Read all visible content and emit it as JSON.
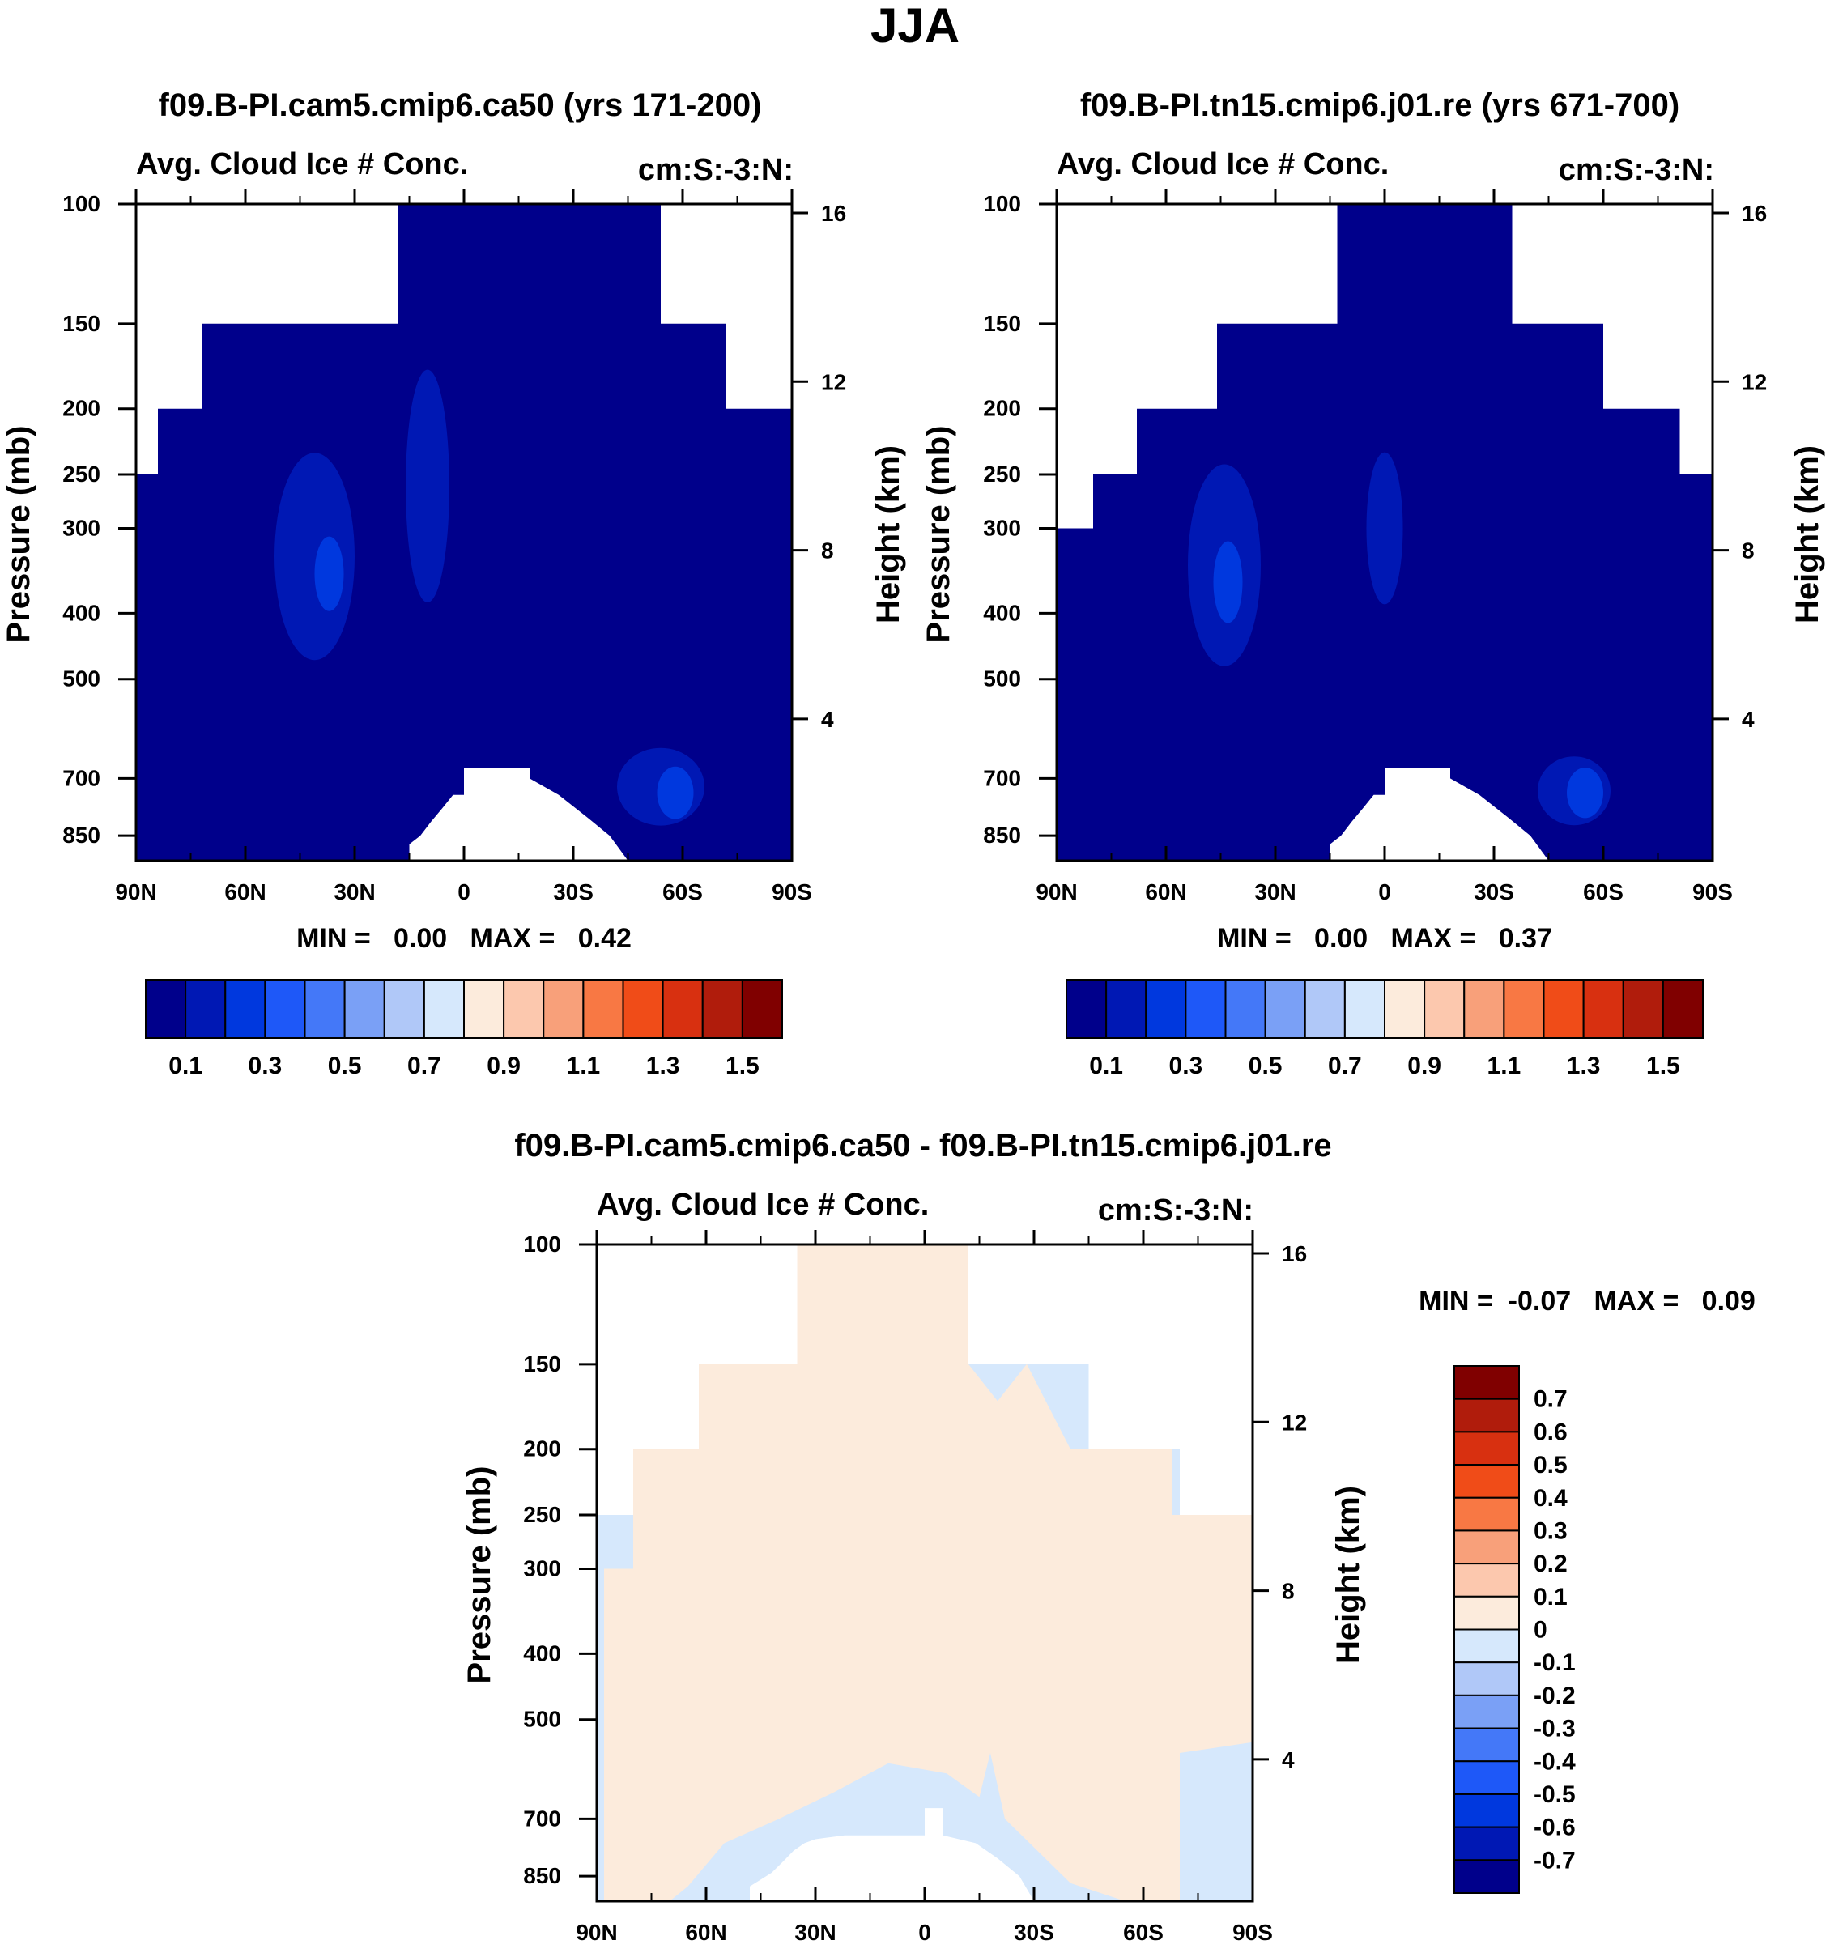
{
  "figure": {
    "title": "JJA"
  },
  "colors": {
    "seq_scale": [
      "#00008b",
      "#0018b4",
      "#0038de",
      "#1e58f8",
      "#4478f8",
      "#7aa0f6",
      "#b0c8f8",
      "#d6e8fc",
      "#fcebdc",
      "#fcc8ae",
      "#f8a07a",
      "#f87844",
      "#f04c18",
      "#d83010",
      "#b01c0c",
      "#800000"
    ],
    "diff_scale": [
      "#00008b",
      "#0018b4",
      "#0038de",
      "#1e58f8",
      "#4478f8",
      "#7aa0f6",
      "#b0c8f8",
      "#d6e8fc",
      "#fcebdc",
      "#fcc8ae",
      "#f8a07a",
      "#f87844",
      "#f04c18",
      "#d83010",
      "#b01c0c",
      "#800000"
    ]
  },
  "chart_data": [
    {
      "type": "heatmap",
      "id": "case1",
      "title": "f09.B-PI.cam5.cmip6.ca50 (yrs 171-200)",
      "subtitle_left": "Avg. Cloud Ice # Conc.",
      "subtitle_right": "cm:S:-3:N:",
      "xlabel": "",
      "ylabel": "Pressure (mb)",
      "y2label": "Height (km)",
      "x_ticks": [
        "90N",
        "60N",
        "30N",
        "0",
        "30S",
        "60S",
        "90S"
      ],
      "x_range": [
        90,
        -90
      ],
      "y_ticks": [
        "100",
        "150",
        "200",
        "250",
        "300",
        "400",
        "500",
        "700",
        "850"
      ],
      "y_range_mb": [
        100,
        925
      ],
      "y2_ticks": [
        "16",
        "12",
        "8",
        "4"
      ],
      "min_max": "MIN =   0.00   MAX =   0.42",
      "colorbar_labels": [
        "0.1",
        "0.3",
        "0.5",
        "0.7",
        "0.9",
        "1.1",
        "1.3",
        "1.5"
      ],
      "background_level": 0,
      "mask_top": [
        [
          -90,
          200
        ],
        [
          -72,
          200
        ],
        [
          -72,
          150
        ],
        [
          -54,
          150
        ],
        [
          -54,
          100
        ],
        [
          18,
          100
        ],
        [
          18,
          150
        ],
        [
          72,
          150
        ],
        [
          72,
          200
        ],
        [
          84,
          200
        ],
        [
          84,
          250
        ],
        [
          90,
          250
        ]
      ],
      "blobs": [
        {
          "lat": 41,
          "p": 330,
          "w": 11,
          "h": 190,
          "level": 1
        },
        {
          "lat": 37,
          "p": 350,
          "w": 4,
          "h": 50,
          "level": 2
        },
        {
          "lat": -54,
          "p": 720,
          "w": 12,
          "h": 110,
          "level": 1
        },
        {
          "lat": -58,
          "p": 735,
          "w": 5,
          "h": 50,
          "level": 2
        },
        {
          "lat": 10,
          "p": 260,
          "w": 6,
          "h": 170,
          "level": 1
        }
      ]
    },
    {
      "type": "heatmap",
      "id": "case2",
      "title": "f09.B-PI.tn15.cmip6.j01.re (yrs 671-700)",
      "subtitle_left": "Avg. Cloud Ice # Conc.",
      "subtitle_right": "cm:S:-3:N:",
      "xlabel": "",
      "ylabel": "Pressure (mb)",
      "y2label": "Height (km)",
      "x_ticks": [
        "90N",
        "60N",
        "30N",
        "0",
        "30S",
        "60S",
        "90S"
      ],
      "x_range": [
        90,
        -90
      ],
      "y_ticks": [
        "100",
        "150",
        "200",
        "250",
        "300",
        "400",
        "500",
        "700",
        "850"
      ],
      "y_range_mb": [
        100,
        925
      ],
      "y2_ticks": [
        "16",
        "12",
        "8",
        "4"
      ],
      "min_max": "MIN =   0.00   MAX =   0.37",
      "colorbar_labels": [
        "0.1",
        "0.3",
        "0.5",
        "0.7",
        "0.9",
        "1.1",
        "1.3",
        "1.5"
      ],
      "background_level": 0,
      "mask_top": [
        [
          -90,
          250
        ],
        [
          -81,
          250
        ],
        [
          -81,
          200
        ],
        [
          -60,
          200
        ],
        [
          -60,
          150
        ],
        [
          -35,
          150
        ],
        [
          -35,
          100
        ],
        [
          13,
          100
        ],
        [
          13,
          150
        ],
        [
          46,
          150
        ],
        [
          46,
          200
        ],
        [
          68,
          200
        ],
        [
          68,
          250
        ],
        [
          80,
          250
        ],
        [
          80,
          300
        ],
        [
          90,
          300
        ]
      ],
      "blobs": [
        {
          "lat": 44,
          "p": 340,
          "w": 10,
          "h": 190,
          "level": 1
        },
        {
          "lat": 43,
          "p": 360,
          "w": 4,
          "h": 60,
          "level": 2
        },
        {
          "lat": -52,
          "p": 730,
          "w": 10,
          "h": 90,
          "level": 1
        },
        {
          "lat": -55,
          "p": 735,
          "w": 5,
          "h": 45,
          "level": 2
        },
        {
          "lat": 0,
          "p": 300,
          "w": 5,
          "h": 120,
          "level": 1
        }
      ]
    },
    {
      "type": "heatmap",
      "id": "diff",
      "title": "f09.B-PI.cam5.cmip6.ca50 - f09.B-PI.tn15.cmip6.j01.re",
      "subtitle_left": "Avg. Cloud Ice # Conc.",
      "subtitle_right": "cm:S:-3:N:",
      "xlabel": "",
      "ylabel": "Pressure (mb)",
      "y2label": "Height (km)",
      "x_ticks": [
        "90N",
        "60N",
        "30N",
        "0",
        "30S",
        "60S",
        "90S"
      ],
      "x_range": [
        90,
        -90
      ],
      "y_ticks": [
        "100",
        "150",
        "200",
        "250",
        "300",
        "400",
        "500",
        "700",
        "850"
      ],
      "y_range_mb": [
        100,
        925
      ],
      "y2_ticks": [
        "16",
        "12",
        "8",
        "4"
      ],
      "min_max": "MIN =  -0.07   MAX =   0.09",
      "colorbar_labels": [
        "0.7",
        "0.6",
        "0.5",
        "0.4",
        "0.3",
        "0.2",
        "0.1",
        "0",
        "-0.1",
        "-0.2",
        "-0.3",
        "-0.4",
        "-0.5",
        "-0.6",
        "-0.7"
      ],
      "positive_region": {
        "lat_min": -72,
        "lat_max": 88,
        "p_top": 100
      },
      "negative_regions": [
        {
          "lat_min": 70,
          "lat_max": 90,
          "p_min": 520,
          "p_max": 925
        },
        {
          "lat_min": -90,
          "lat_max": -70,
          "p_min": 540,
          "p_max": 925
        },
        {
          "lat_min": 30,
          "lat_max": 60,
          "p_min": 650,
          "p_max": 925
        },
        {
          "lat_min": -30,
          "lat_max": -15,
          "p_min": 600,
          "p_max": 925
        }
      ]
    }
  ]
}
